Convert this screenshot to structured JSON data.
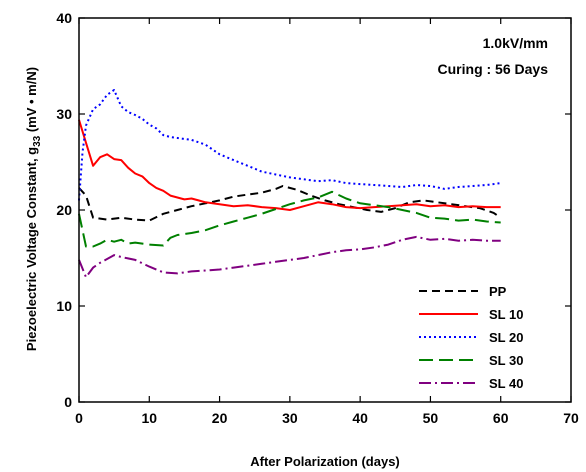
{
  "chart_data": {
    "type": "line",
    "title": "",
    "xlabel": "After Polarization (days)",
    "ylabel_main": "Piezoelectric Voltage Constant, g",
    "ylabel_sub": "33",
    "ylabel_unit": " (mV • m/N)",
    "xlim": [
      0,
      70
    ],
    "ylim": [
      0,
      40
    ],
    "x_ticks": [
      0,
      10,
      20,
      30,
      40,
      50,
      60,
      70
    ],
    "y_ticks": [
      0,
      10,
      20,
      30,
      40
    ],
    "grid": false,
    "legend_position": "bottom-right",
    "annotations": [
      "1.0kV/mm",
      "Curing : 56 Days"
    ],
    "series": [
      {
        "name": "PP",
        "color": "#000000",
        "dash": "8,5",
        "x": [
          0,
          1,
          2,
          4,
          6,
          8,
          10,
          12,
          14,
          16,
          18,
          20,
          22,
          24,
          26,
          28,
          29,
          31,
          33,
          35,
          37,
          39,
          41,
          43,
          45,
          47,
          49,
          51,
          53,
          55,
          57,
          59,
          60
        ],
        "y": [
          22.3,
          21.5,
          19.2,
          19.0,
          19.2,
          19.0,
          18.9,
          19.6,
          20.0,
          20.4,
          20.7,
          21.0,
          21.4,
          21.6,
          21.8,
          22.2,
          22.5,
          22.1,
          21.5,
          21.0,
          20.6,
          20.3,
          20.0,
          19.8,
          20.2,
          20.8,
          21.0,
          20.8,
          20.6,
          20.4,
          20.2,
          19.7,
          19.2
        ]
      },
      {
        "name": "SL 10",
        "color": "#ff0000",
        "dash": "",
        "x": [
          0,
          1,
          2,
          3,
          4,
          5,
          6,
          7,
          8,
          9,
          10,
          11,
          12,
          13,
          14,
          15,
          16,
          17,
          18,
          20,
          22,
          24,
          26,
          28,
          30,
          32,
          34,
          36,
          38,
          40,
          42,
          44,
          46,
          48,
          50,
          52,
          54,
          56,
          58,
          60
        ],
        "y": [
          29.4,
          27.0,
          24.6,
          25.5,
          25.8,
          25.3,
          25.2,
          24.4,
          23.8,
          23.5,
          22.8,
          22.3,
          22.0,
          21.5,
          21.3,
          21.1,
          21.2,
          21.0,
          20.8,
          20.6,
          20.4,
          20.5,
          20.3,
          20.2,
          20.0,
          20.4,
          20.8,
          20.6,
          20.3,
          20.2,
          20.3,
          20.4,
          20.5,
          20.6,
          20.4,
          20.5,
          20.3,
          20.4,
          20.3,
          20.3
        ]
      },
      {
        "name": "SL 20",
        "color": "#0000ff",
        "dash": "2,3",
        "x": [
          0,
          0.5,
          1,
          2,
          3,
          4,
          5,
          6,
          7,
          8,
          9,
          10,
          11,
          12,
          13,
          14,
          16,
          18,
          20,
          22,
          24,
          26,
          28,
          30,
          32,
          34,
          36,
          38,
          40,
          42,
          44,
          46,
          48,
          50,
          52,
          54,
          56,
          58,
          60
        ],
        "y": [
          21.0,
          26.0,
          28.8,
          30.5,
          31.0,
          32.0,
          32.5,
          30.8,
          30.2,
          29.9,
          29.5,
          28.9,
          28.5,
          27.8,
          27.6,
          27.5,
          27.3,
          26.8,
          25.8,
          25.2,
          24.6,
          24.0,
          23.7,
          23.4,
          23.2,
          23.0,
          23.1,
          22.8,
          22.7,
          22.6,
          22.5,
          22.4,
          22.6,
          22.5,
          22.2,
          22.4,
          22.5,
          22.6,
          22.8
        ]
      },
      {
        "name": "SL 30",
        "color": "#008000",
        "dash": "14,6",
        "x": [
          0,
          1,
          2,
          3,
          4,
          5,
          6,
          7,
          8,
          10,
          12,
          13,
          14,
          16,
          18,
          20,
          22,
          24,
          26,
          28,
          30,
          32,
          34,
          36,
          38,
          40,
          42,
          44,
          46,
          48,
          50,
          52,
          54,
          56,
          58,
          60
        ],
        "y": [
          19.6,
          16.2,
          16.2,
          16.5,
          16.9,
          16.7,
          16.9,
          16.5,
          16.6,
          16.4,
          16.3,
          17.1,
          17.4,
          17.6,
          17.9,
          18.4,
          18.8,
          19.2,
          19.6,
          20.1,
          20.6,
          21.0,
          21.3,
          21.9,
          21.2,
          20.7,
          20.5,
          20.3,
          20.0,
          19.7,
          19.2,
          19.1,
          18.9,
          19.0,
          18.8,
          18.7
        ]
      },
      {
        "name": "SL 40",
        "color": "#800080",
        "dash": "12,4,2,4",
        "x": [
          0,
          1,
          2,
          3,
          4,
          5,
          6,
          8,
          10,
          12,
          14,
          16,
          18,
          20,
          22,
          24,
          26,
          28,
          30,
          32,
          34,
          36,
          38,
          40,
          42,
          44,
          46,
          48,
          50,
          52,
          54,
          56,
          58,
          60
        ],
        "y": [
          14.8,
          13.0,
          14.0,
          14.5,
          14.9,
          15.3,
          15.1,
          14.8,
          14.1,
          13.5,
          13.4,
          13.6,
          13.7,
          13.8,
          14.0,
          14.2,
          14.4,
          14.6,
          14.8,
          15.0,
          15.3,
          15.6,
          15.8,
          15.9,
          16.1,
          16.4,
          16.9,
          17.2,
          16.9,
          17.0,
          16.8,
          16.9,
          16.8,
          16.8
        ]
      }
    ]
  }
}
